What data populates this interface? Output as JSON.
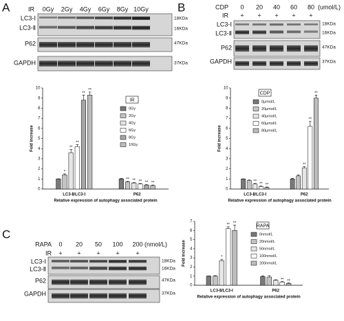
{
  "blots": [
    {
      "panel": "A",
      "header": [
        "IR",
        "0Gy",
        "2Gy",
        "4Gy",
        "6Gy",
        "8Gy",
        "10Gy"
      ],
      "treatment": null,
      "rows": [
        "LC3-Ⅰ",
        "LC3-Ⅱ",
        "P62",
        "GAPDH"
      ],
      "kda": [
        "18KDa",
        "16KDa",
        "47KDa",
        "37KDa"
      ]
    },
    {
      "panel": "B",
      "header": [
        "CDP",
        "0",
        "20",
        "40",
        "60",
        "80",
        "(umol/L)"
      ],
      "treatment": [
        "IR",
        "+",
        "+",
        "+",
        "+",
        "+"
      ],
      "rows": [
        "LC3-Ⅰ",
        "LC3-Ⅱ",
        "P62",
        "GAPDH"
      ],
      "kda": [
        "18KDa",
        "16KDa",
        "47KDa",
        "37KDa"
      ]
    },
    {
      "panel": "C",
      "header": [
        "RAPA",
        "0",
        "20",
        "50",
        "100",
        "200",
        "(nmol/L)"
      ],
      "treatment": [
        "IR",
        "+",
        "+",
        "+",
        "+",
        "+"
      ],
      "rows": [
        "LC3-Ⅰ",
        "LC3-Ⅱ",
        "P62",
        "GAPDH"
      ],
      "kda": [
        "18KDa",
        "16KDa",
        "47KDa",
        "37KDa"
      ]
    }
  ],
  "chart_data": [
    {
      "type": "bar",
      "legend_title": "IR",
      "ylabel": "Fold increase",
      "xlabel": "Relative expression of autophagy associated protein",
      "categories": [
        "LC3-Ⅱ/LC3-Ⅰ",
        "P62"
      ],
      "ylim": [
        0,
        10
      ],
      "yticks": [
        0,
        1,
        2,
        3,
        4,
        5,
        6,
        7,
        8,
        9,
        10
      ],
      "series": [
        {
          "name": "0Gy",
          "color": "#7a7a7a",
          "values": [
            1,
            1
          ],
          "errors": [
            0.02,
            0.05
          ],
          "annotations": [
            null,
            null
          ]
        },
        {
          "name": "2Gy",
          "color": "#c4c4c4",
          "values": [
            1.4,
            0.7
          ],
          "errors": [
            0.1,
            0.05
          ],
          "annotations": [
            "*",
            "**"
          ]
        },
        {
          "name": "4Gy",
          "color": "#e6e6e6",
          "values": [
            3.6,
            0.6
          ],
          "errors": [
            0.3,
            0.05
          ],
          "annotations": [
            "**",
            "**"
          ]
        },
        {
          "name": "6Gy",
          "color": "#ffffff",
          "values": [
            4.2,
            0.5
          ],
          "errors": [
            0.2,
            0.05
          ],
          "annotations": [
            "**",
            "**"
          ]
        },
        {
          "name": "8Gy",
          "color": "#a6a6a6",
          "values": [
            8.8,
            0.4
          ],
          "errors": [
            0.5,
            0.05
          ],
          "annotations": [
            "**",
            "**"
          ]
        },
        {
          "name": "10Gy",
          "color": "#bdbdbd",
          "values": [
            9.3,
            0.35
          ],
          "errors": [
            0.3,
            0.05
          ],
          "annotations": [
            "**",
            "**"
          ]
        }
      ]
    },
    {
      "type": "bar",
      "legend_title": "CDP",
      "ylabel": "Fold increase",
      "xlabel": "Relative expression of autophagy associated protein",
      "categories": [
        "LC3-Ⅱ/LC3-Ⅰ",
        "P62"
      ],
      "ylim": [
        0,
        10
      ],
      "yticks": [
        0,
        1,
        2,
        3,
        4,
        5,
        6,
        7,
        8,
        9,
        10
      ],
      "series": [
        {
          "name": "0μmol/L",
          "color": "#7a7a7a",
          "values": [
            1,
            1
          ],
          "errors": [
            0.02,
            0.05
          ],
          "annotations": [
            null,
            null
          ]
        },
        {
          "name": "20μmol/L",
          "color": "#c4c4c4",
          "values": [
            0.85,
            1.3
          ],
          "errors": [
            0.05,
            0.1
          ],
          "annotations": [
            null,
            null
          ]
        },
        {
          "name": "40μmol/L",
          "color": "#e6e6e6",
          "values": [
            0.5,
            2.1
          ],
          "errors": [
            0.05,
            0.1
          ],
          "annotations": [
            "**",
            "**"
          ]
        },
        {
          "name": "60μmol/L",
          "color": "#ffffff",
          "values": [
            0.25,
            6.2
          ],
          "errors": [
            0.05,
            0.5
          ],
          "annotations": [
            "**",
            "**"
          ]
        },
        {
          "name": "80μmol/L",
          "color": "#bdbdbd",
          "values": [
            0.15,
            9.0
          ],
          "errors": [
            0.05,
            0.3
          ],
          "annotations": [
            "**",
            "**"
          ]
        }
      ]
    },
    {
      "type": "bar",
      "legend_title": "RAPA",
      "ylabel": "Fold increase",
      "xlabel": "Relative expression of autophagy associated protein",
      "categories": [
        "LC3-Ⅱ/LC3-Ⅰ",
        "P62"
      ],
      "ylim": [
        0,
        7
      ],
      "yticks": [
        0,
        1,
        2,
        3,
        4,
        5,
        6,
        7
      ],
      "series": [
        {
          "name": "0nmol/L",
          "color": "#7a7a7a",
          "values": [
            1,
            0.95
          ],
          "errors": [
            0.02,
            0.1
          ],
          "annotations": [
            null,
            null
          ]
        },
        {
          "name": "20nmol/L",
          "color": "#c4c4c4",
          "values": [
            1,
            0.9
          ],
          "errors": [
            0.05,
            0.15
          ],
          "annotations": [
            null,
            null
          ]
        },
        {
          "name": "50nmol/L",
          "color": "#e6e6e6",
          "values": [
            2.7,
            0.55
          ],
          "errors": [
            0.15,
            0.05
          ],
          "annotations": [
            "*",
            null
          ]
        },
        {
          "name": "100nmol/L",
          "color": "#ffffff",
          "values": [
            6.2,
            0.35
          ],
          "errors": [
            0.2,
            0.05
          ],
          "annotations": [
            "**",
            "**"
          ]
        },
        {
          "name": "200nmol/L",
          "color": "#bdbdbd",
          "values": [
            6.0,
            0.2
          ],
          "errors": [
            0.6,
            0.05
          ],
          "annotations": [
            "**",
            "**"
          ]
        }
      ]
    }
  ]
}
